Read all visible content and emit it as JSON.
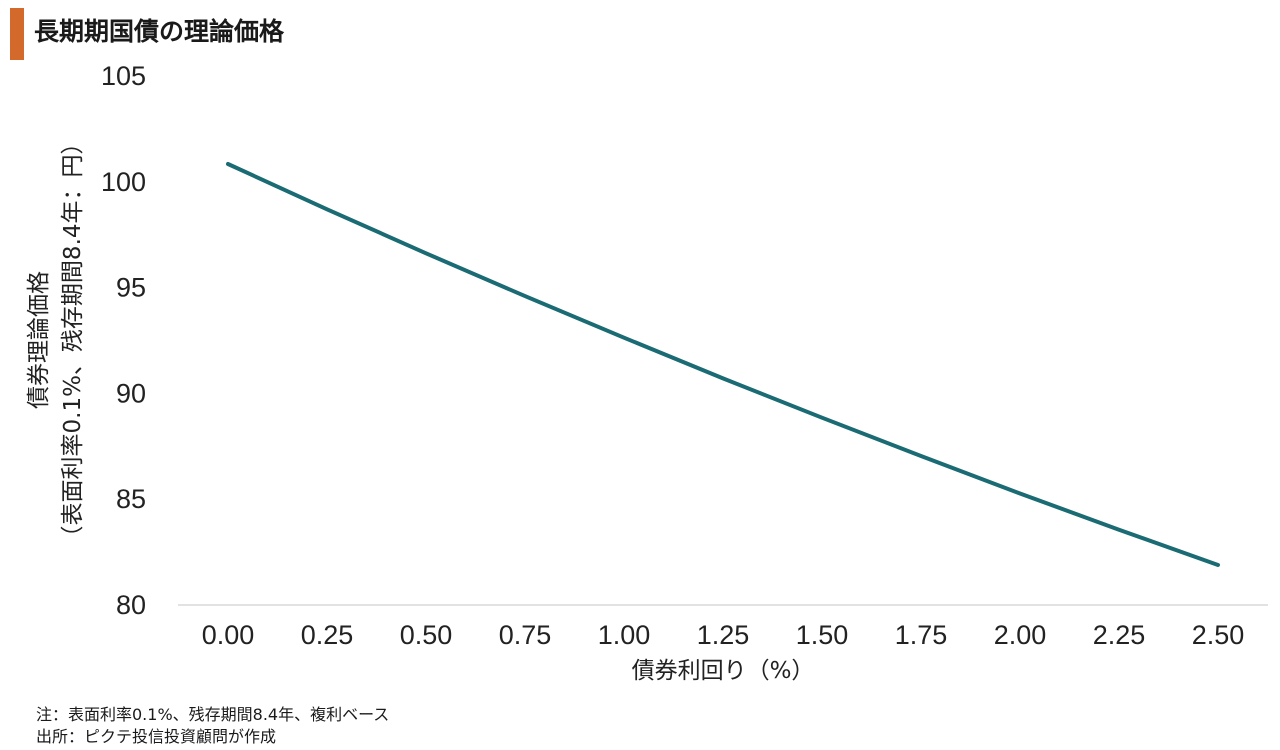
{
  "title": "長期期国債の理論価格",
  "colors": {
    "accent": "#d4692c",
    "line": "#1a6b73",
    "axis": "#d9d9d9"
  },
  "notes": {
    "note1": "注：表面利率0.1%、残存期間8.4年、複利ベース",
    "note2": "出所：ピクテ投信投資顧問が作成"
  },
  "chart_data": {
    "type": "line",
    "title": "長期期国債の理論価格",
    "xlabel": "債券利回り（%）",
    "ylabel_lines": [
      "債券理論価格",
      "（表面利率0.1%、残存期間8.4年：円）"
    ],
    "x_ticks": [
      "0.00",
      "0.25",
      "0.50",
      "0.75",
      "1.00",
      "1.25",
      "1.50",
      "1.75",
      "2.00",
      "2.25",
      "2.50"
    ],
    "y_ticks": [
      "105",
      "100",
      "95",
      "90",
      "85",
      "80"
    ],
    "xlim": [
      0,
      2.5
    ],
    "ylim": [
      80,
      105
    ],
    "grid": false,
    "legend": "none",
    "series": [
      {
        "x": [
          0.0,
          0.25,
          0.5,
          0.75,
          1.0,
          1.25,
          1.5,
          1.75,
          2.0,
          2.25,
          2.5
        ],
        "y": [
          100.84,
          98.7,
          96.62,
          94.6,
          92.63,
          90.71,
          88.85,
          87.04,
          85.27,
          83.56,
          81.89
        ]
      }
    ]
  }
}
